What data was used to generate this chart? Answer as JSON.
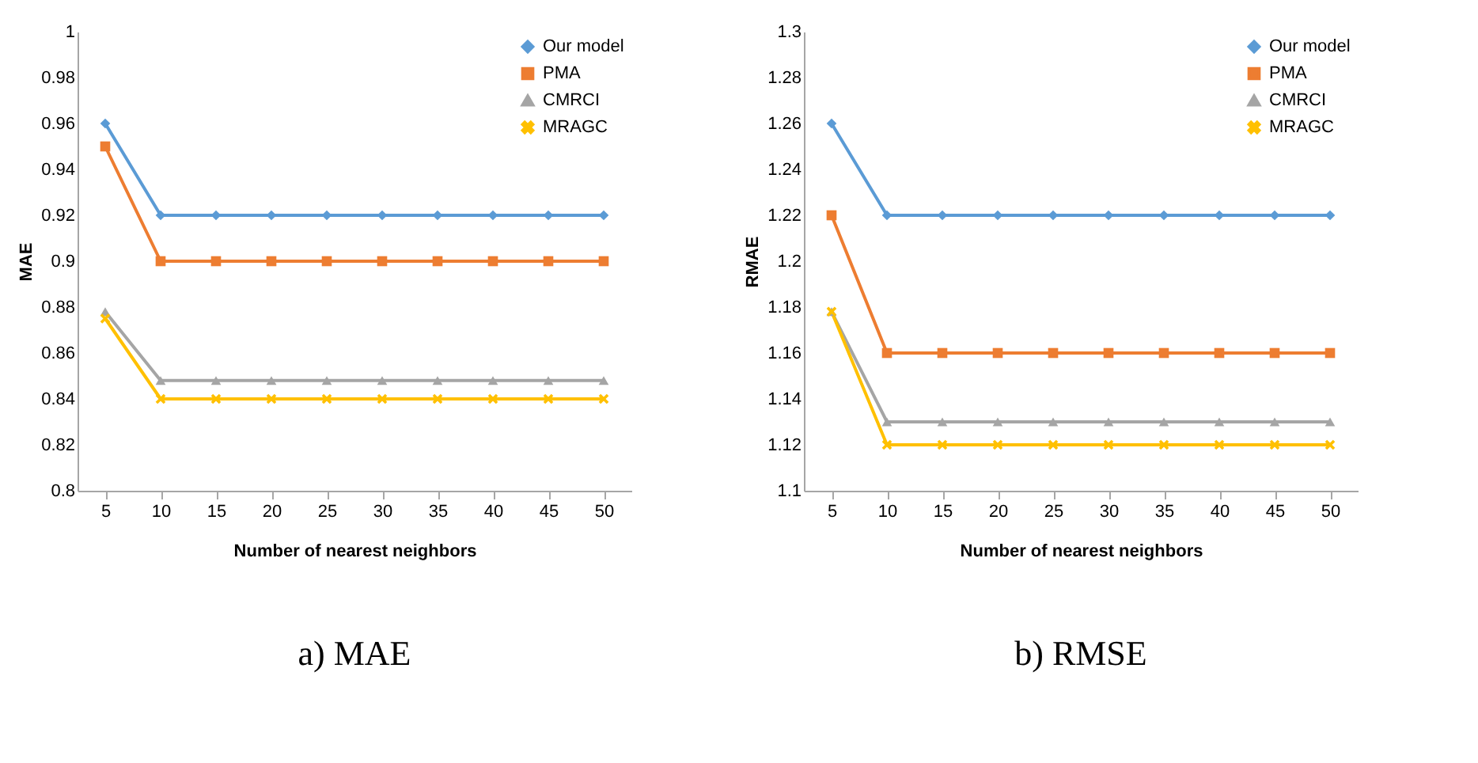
{
  "chart_data": [
    {
      "type": "line",
      "title": "a) MAE",
      "xlabel": "Number of nearest neighbors",
      "ylabel": "MAE",
      "categories": [
        "5",
        "10",
        "15",
        "20",
        "25",
        "30",
        "35",
        "40",
        "45",
        "50"
      ],
      "ylim": [
        0.8,
        1
      ],
      "yticks": [
        0.8,
        0.82,
        0.84,
        0.86,
        0.88,
        0.9,
        0.92,
        0.94,
        0.96,
        0.98,
        1
      ],
      "grid": false,
      "legend": "top right",
      "series": [
        {
          "name": "Our model",
          "color": "#5b9bd5",
          "marker": "diamond",
          "values": [
            0.96,
            0.92,
            0.92,
            0.92,
            0.92,
            0.92,
            0.92,
            0.92,
            0.92,
            0.92
          ]
        },
        {
          "name": "PMA",
          "color": "#ed7d31",
          "marker": "square",
          "values": [
            0.95,
            0.9,
            0.9,
            0.9,
            0.9,
            0.9,
            0.9,
            0.9,
            0.9,
            0.9
          ]
        },
        {
          "name": "CMRCI",
          "color": "#a5a5a5",
          "marker": "triangle",
          "values": [
            0.878,
            0.848,
            0.848,
            0.848,
            0.848,
            0.848,
            0.848,
            0.848,
            0.848,
            0.848
          ]
        },
        {
          "name": "MRAGC",
          "color": "#ffc000",
          "marker": "cross",
          "values": [
            0.875,
            0.84,
            0.84,
            0.84,
            0.84,
            0.84,
            0.84,
            0.84,
            0.84,
            0.84
          ]
        }
      ]
    },
    {
      "type": "line",
      "title": "b) RMSE",
      "xlabel": "Number of nearest neighbors",
      "ylabel": "RMAE",
      "categories": [
        "5",
        "10",
        "15",
        "20",
        "25",
        "30",
        "35",
        "40",
        "45",
        "50"
      ],
      "ylim": [
        1.1,
        1.3
      ],
      "yticks": [
        1.1,
        1.12,
        1.14,
        1.16,
        1.18,
        1.2,
        1.22,
        1.24,
        1.26,
        1.28,
        1.3
      ],
      "grid": false,
      "legend": "top right",
      "series": [
        {
          "name": "Our model",
          "color": "#5b9bd5",
          "marker": "diamond",
          "values": [
            1.26,
            1.22,
            1.22,
            1.22,
            1.22,
            1.22,
            1.22,
            1.22,
            1.22,
            1.22
          ]
        },
        {
          "name": "PMA",
          "color": "#ed7d31",
          "marker": "square",
          "values": [
            1.22,
            1.16,
            1.16,
            1.16,
            1.16,
            1.16,
            1.16,
            1.16,
            1.16,
            1.16
          ]
        },
        {
          "name": "CMRCI",
          "color": "#a5a5a5",
          "marker": "triangle",
          "values": [
            1.178,
            1.13,
            1.13,
            1.13,
            1.13,
            1.13,
            1.13,
            1.13,
            1.13,
            1.13
          ]
        },
        {
          "name": "MRAGC",
          "color": "#ffc000",
          "marker": "cross",
          "values": [
            1.178,
            1.12,
            1.12,
            1.12,
            1.12,
            1.12,
            1.12,
            1.12,
            1.12,
            1.12
          ]
        }
      ]
    }
  ]
}
